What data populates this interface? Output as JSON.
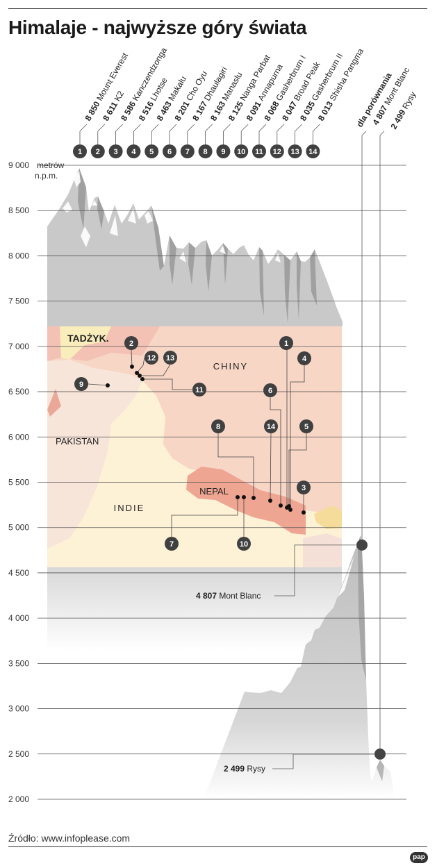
{
  "title": "Himalaje - najwyższe góry świata",
  "source": "Źródło: www.infoplease.com",
  "logo": "pap",
  "chart_data": {
    "type": "bar",
    "title": "Himalaje - najwyższe góry świata",
    "ylabel": "metrów n.p.m.",
    "ylim": [
      2000,
      9000
    ],
    "yticks": [
      2000,
      2500,
      3000,
      3500,
      4000,
      4500,
      5000,
      5500,
      6000,
      6500,
      7000,
      7500,
      8000,
      8500,
      9000
    ],
    "y_unit_line1": "metrów",
    "y_unit_line2": "n.p.m.",
    "grid": true,
    "peaks": [
      {
        "rank": "1",
        "height": 8850,
        "height_label": "8 850",
        "name": "Mount Everest"
      },
      {
        "rank": "2",
        "height": 8611,
        "height_label": "8 611",
        "name": "K2"
      },
      {
        "rank": "3",
        "height": 8586,
        "height_label": "8 586",
        "name": "Kanczendzonga"
      },
      {
        "rank": "4",
        "height": 8516,
        "height_label": "8 516",
        "name": "Lhotse"
      },
      {
        "rank": "5",
        "height": 8463,
        "height_label": "8 463",
        "name": "Makalu"
      },
      {
        "rank": "6",
        "height": 8201,
        "height_label": "8 201",
        "name": "Cho Oyu"
      },
      {
        "rank": "7",
        "height": 8167,
        "height_label": "8 167",
        "name": "Dhaulagiri"
      },
      {
        "rank": "8",
        "height": 8163,
        "height_label": "8 163",
        "name": "Manaslu"
      },
      {
        "rank": "9",
        "height": 8125,
        "height_label": "8 125",
        "name": "Nanga Parbat"
      },
      {
        "rank": "10",
        "height": 8091,
        "height_label": "8 091",
        "name": "Annapurna"
      },
      {
        "rank": "11",
        "height": 8068,
        "height_label": "8 068",
        "name": "Gasherbrum I"
      },
      {
        "rank": "12",
        "height": 8047,
        "height_label": "8 047",
        "name": "Broad Peak"
      },
      {
        "rank": "13",
        "height": 8035,
        "height_label": "8 035",
        "name": "Gasherbrum II"
      },
      {
        "rank": "14",
        "height": 8013,
        "height_label": "8 013",
        "name": "Shisha Pangma"
      }
    ],
    "comparison": {
      "heading": "dla porównania",
      "items": [
        {
          "height": 4807,
          "height_label": "4 807",
          "name": "Mont Blanc"
        },
        {
          "height": 2499,
          "height_label": "2 499",
          "name": "Rysy"
        }
      ]
    },
    "map": {
      "countries": [
        "TADŻYK.",
        "CHINY",
        "PAKISTAN",
        "INDIE",
        "NEPAL"
      ],
      "colors": {
        "china": "#f7d6c6",
        "pakistan": "#f8e5da",
        "india": "#fdf1d6",
        "nepal": "#eea592",
        "tajik": "#f9edbc",
        "afgh": "#f3c2b4"
      }
    },
    "colors": {
      "mountain": "#c9c9c9",
      "mountain_dark": "#8f8f8f",
      "snow": "#ffffff",
      "badge": "#404040",
      "grid": "#555555"
    }
  }
}
